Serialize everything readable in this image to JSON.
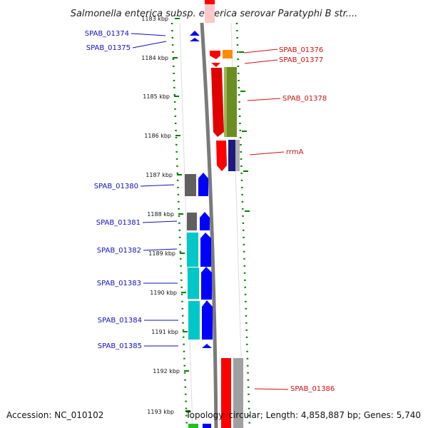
{
  "title": "Salmonella enterica subsp. enterica serovar Paratyphi B str....",
  "footer": {
    "accession": "Accession: NC_010102",
    "topology": "Topology: circular; Length: 4,858,887 bp; Genes: 5,740"
  },
  "ticks": [
    {
      "label": "1183 kbp"
    },
    {
      "label": "1184 kbp"
    },
    {
      "label": "1185 kbp"
    },
    {
      "label": "1186 kbp"
    },
    {
      "label": "1187 kbp"
    },
    {
      "label": "1188 kbp"
    },
    {
      "label": "1189 kbp"
    },
    {
      "label": "1190 kbp"
    },
    {
      "label": "1191 kbp"
    },
    {
      "label": "1192 kbp"
    },
    {
      "label": "1193 kbp"
    }
  ],
  "gene_labels_left": [
    {
      "label": "SPAB_01374"
    },
    {
      "label": "SPAB_01375"
    },
    {
      "label": "SPAB_01380"
    },
    {
      "label": "SPAB_01381"
    },
    {
      "label": "SPAB_01382"
    },
    {
      "label": "SPAB_01383"
    },
    {
      "label": "SPAB_01384"
    },
    {
      "label": "SPAB_01385"
    }
  ],
  "gene_labels_right": [
    {
      "label": "SPAB_01376"
    },
    {
      "label": "SPAB_01377"
    },
    {
      "label": "SPAB_01378"
    },
    {
      "label": "rrmA"
    },
    {
      "label": "SPAB_01386"
    }
  ],
  "colors": {
    "forward_strand": "#0000ff",
    "reverse_strand": "#ff0000",
    "backbone": "#7a7a7a",
    "ticks": "#008000",
    "label_left": "#1010c0",
    "label_right": "#d01010"
  }
}
